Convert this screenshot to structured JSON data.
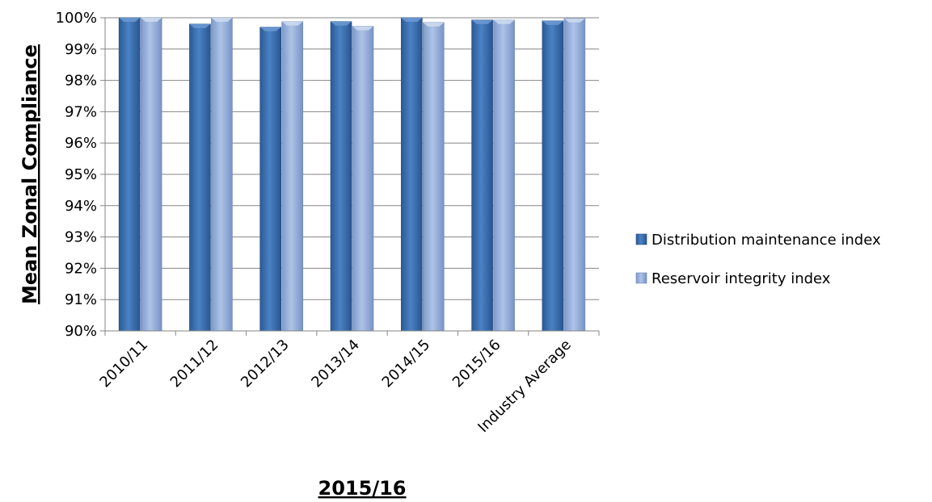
{
  "chart_data": {
    "type": "bar",
    "title": "",
    "xlabel": "2015/16",
    "ylabel": "Mean Zonal Compliance",
    "categories": [
      "2010/11",
      "2011/12",
      "2012/13",
      "2013/14",
      "2014/15",
      "2015/16",
      "Industry Average"
    ],
    "series": [
      {
        "name": "Distribution maintenance index",
        "color": "#3a6fb0",
        "values": [
          1.0,
          0.998,
          0.997,
          0.9988,
          1.0,
          0.9993,
          0.999
        ]
      },
      {
        "name": "Reservoir integrity index",
        "color": "#93acd8",
        "values": [
          1.0,
          1.0,
          0.9988,
          0.9973,
          0.9985,
          0.9993,
          0.9998
        ]
      }
    ],
    "ylim": [
      0.9,
      1.0
    ],
    "yticks": [
      0.9,
      0.91,
      0.92,
      0.93,
      0.94,
      0.95,
      0.96,
      0.97,
      0.98,
      0.99,
      1.0
    ],
    "ytick_labels": [
      "90%",
      "91%",
      "92%",
      "93%",
      "94%",
      "95%",
      "96%",
      "97%",
      "98%",
      "99%",
      "100%"
    ],
    "grid": true,
    "legend_position": "right"
  }
}
